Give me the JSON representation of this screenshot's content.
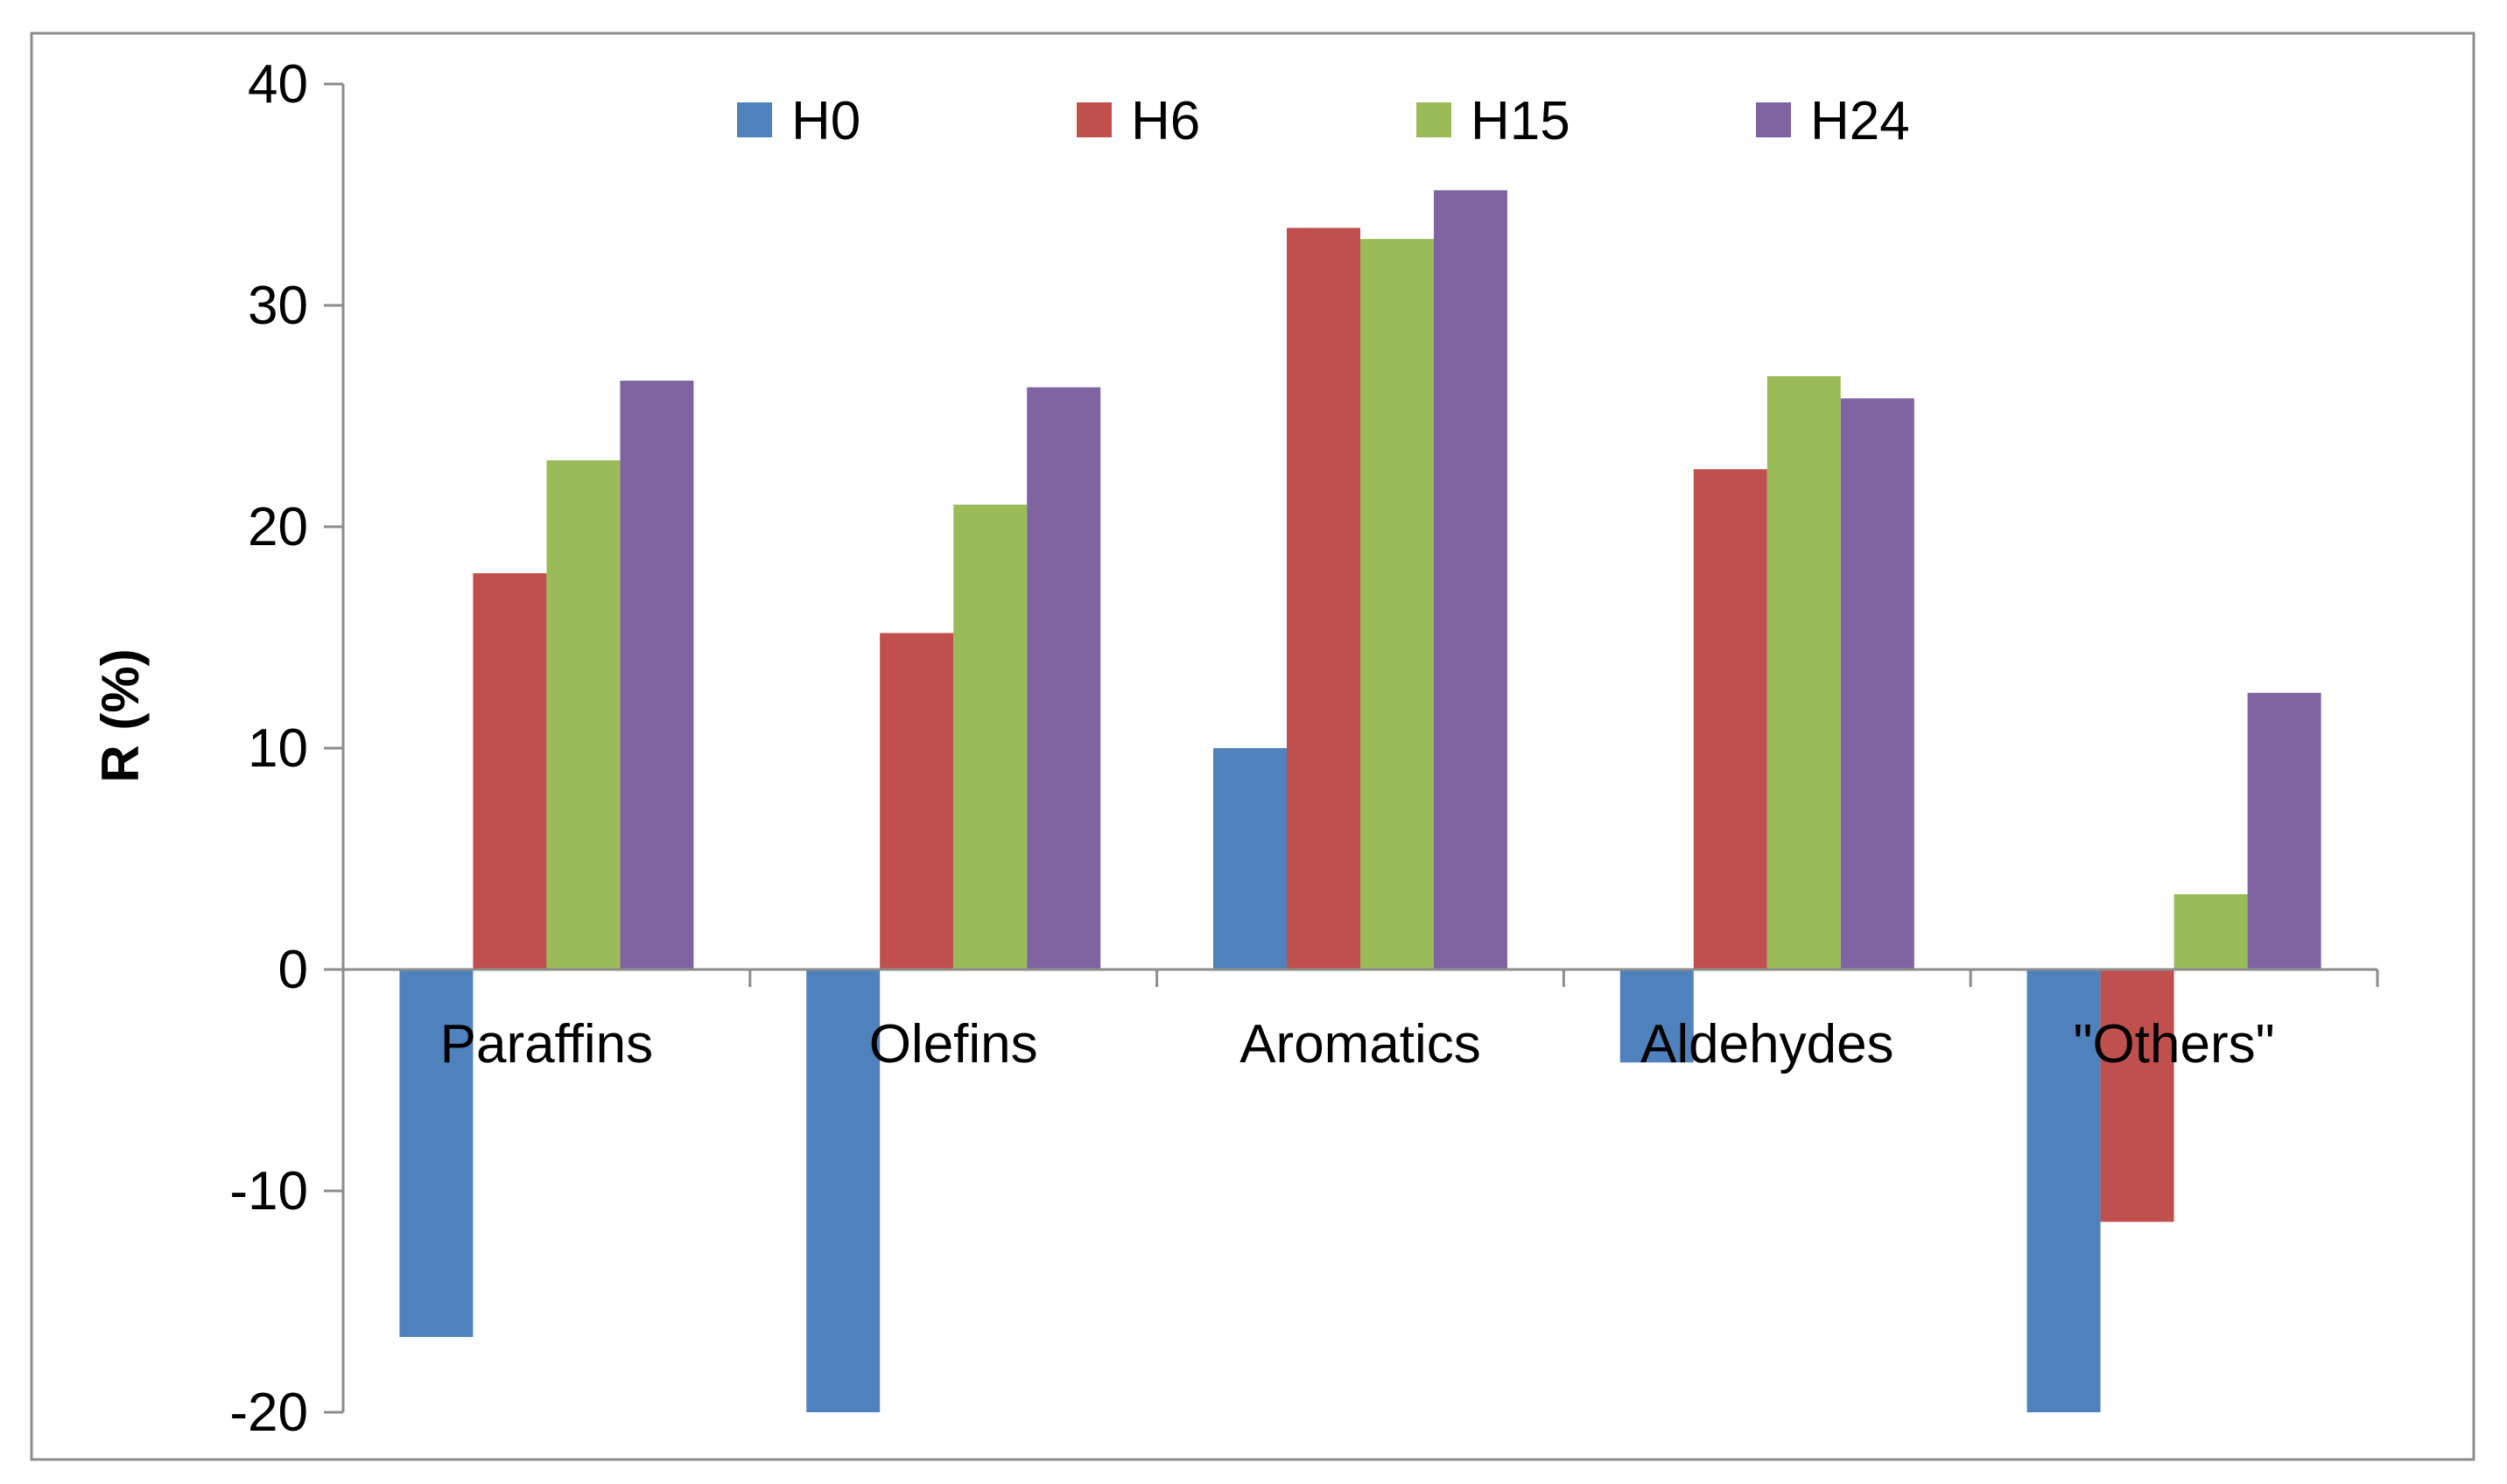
{
  "chart_data": {
    "type": "bar",
    "title": "",
    "xlabel": "",
    "ylabel": "R (%)",
    "ylim": [
      -20,
      40
    ],
    "yticks": [
      40,
      30,
      20,
      10,
      0,
      -10,
      -20
    ],
    "ytick_labels": [
      "40",
      "30",
      "20",
      "10",
      "0",
      "-10",
      "-20"
    ],
    "grid": false,
    "legend_position": "top",
    "categories": [
      "Paraffins",
      "Olefins",
      "Aromatics",
      "Aldehydes",
      "\"Others\""
    ],
    "series": [
      {
        "name": "H0",
        "color": "#4F81BD",
        "values": [
          -16.6,
          -20,
          10,
          -4.2,
          -20
        ]
      },
      {
        "name": "H6",
        "color": "#C0504D",
        "values": [
          17.9,
          15.2,
          33.5,
          22.6,
          -11.4
        ]
      },
      {
        "name": "H15",
        "color": "#9BBB59",
        "values": [
          23,
          21,
          33,
          26.8,
          3.4
        ]
      },
      {
        "name": "H24",
        "color": "#8064A2",
        "values": [
          26.6,
          26.3,
          35.2,
          25.8,
          12.5
        ]
      }
    ]
  }
}
